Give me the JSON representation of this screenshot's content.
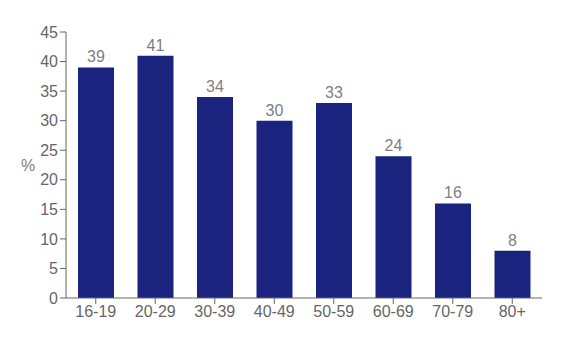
{
  "chart_data": {
    "type": "bar",
    "ylabel": "%",
    "categories": [
      "16-19",
      "20-29",
      "30-39",
      "40-49",
      "50-59",
      "60-69",
      "70-79",
      "80+"
    ],
    "values": [
      39,
      41,
      34,
      30,
      33,
      24,
      16,
      8
    ],
    "color": "#1a237e",
    "ylim": [
      0,
      45
    ],
    "yticks": [
      0,
      5,
      10,
      15,
      20,
      25,
      30,
      35,
      40,
      45
    ],
    "grid": false,
    "data_labels": true
  }
}
